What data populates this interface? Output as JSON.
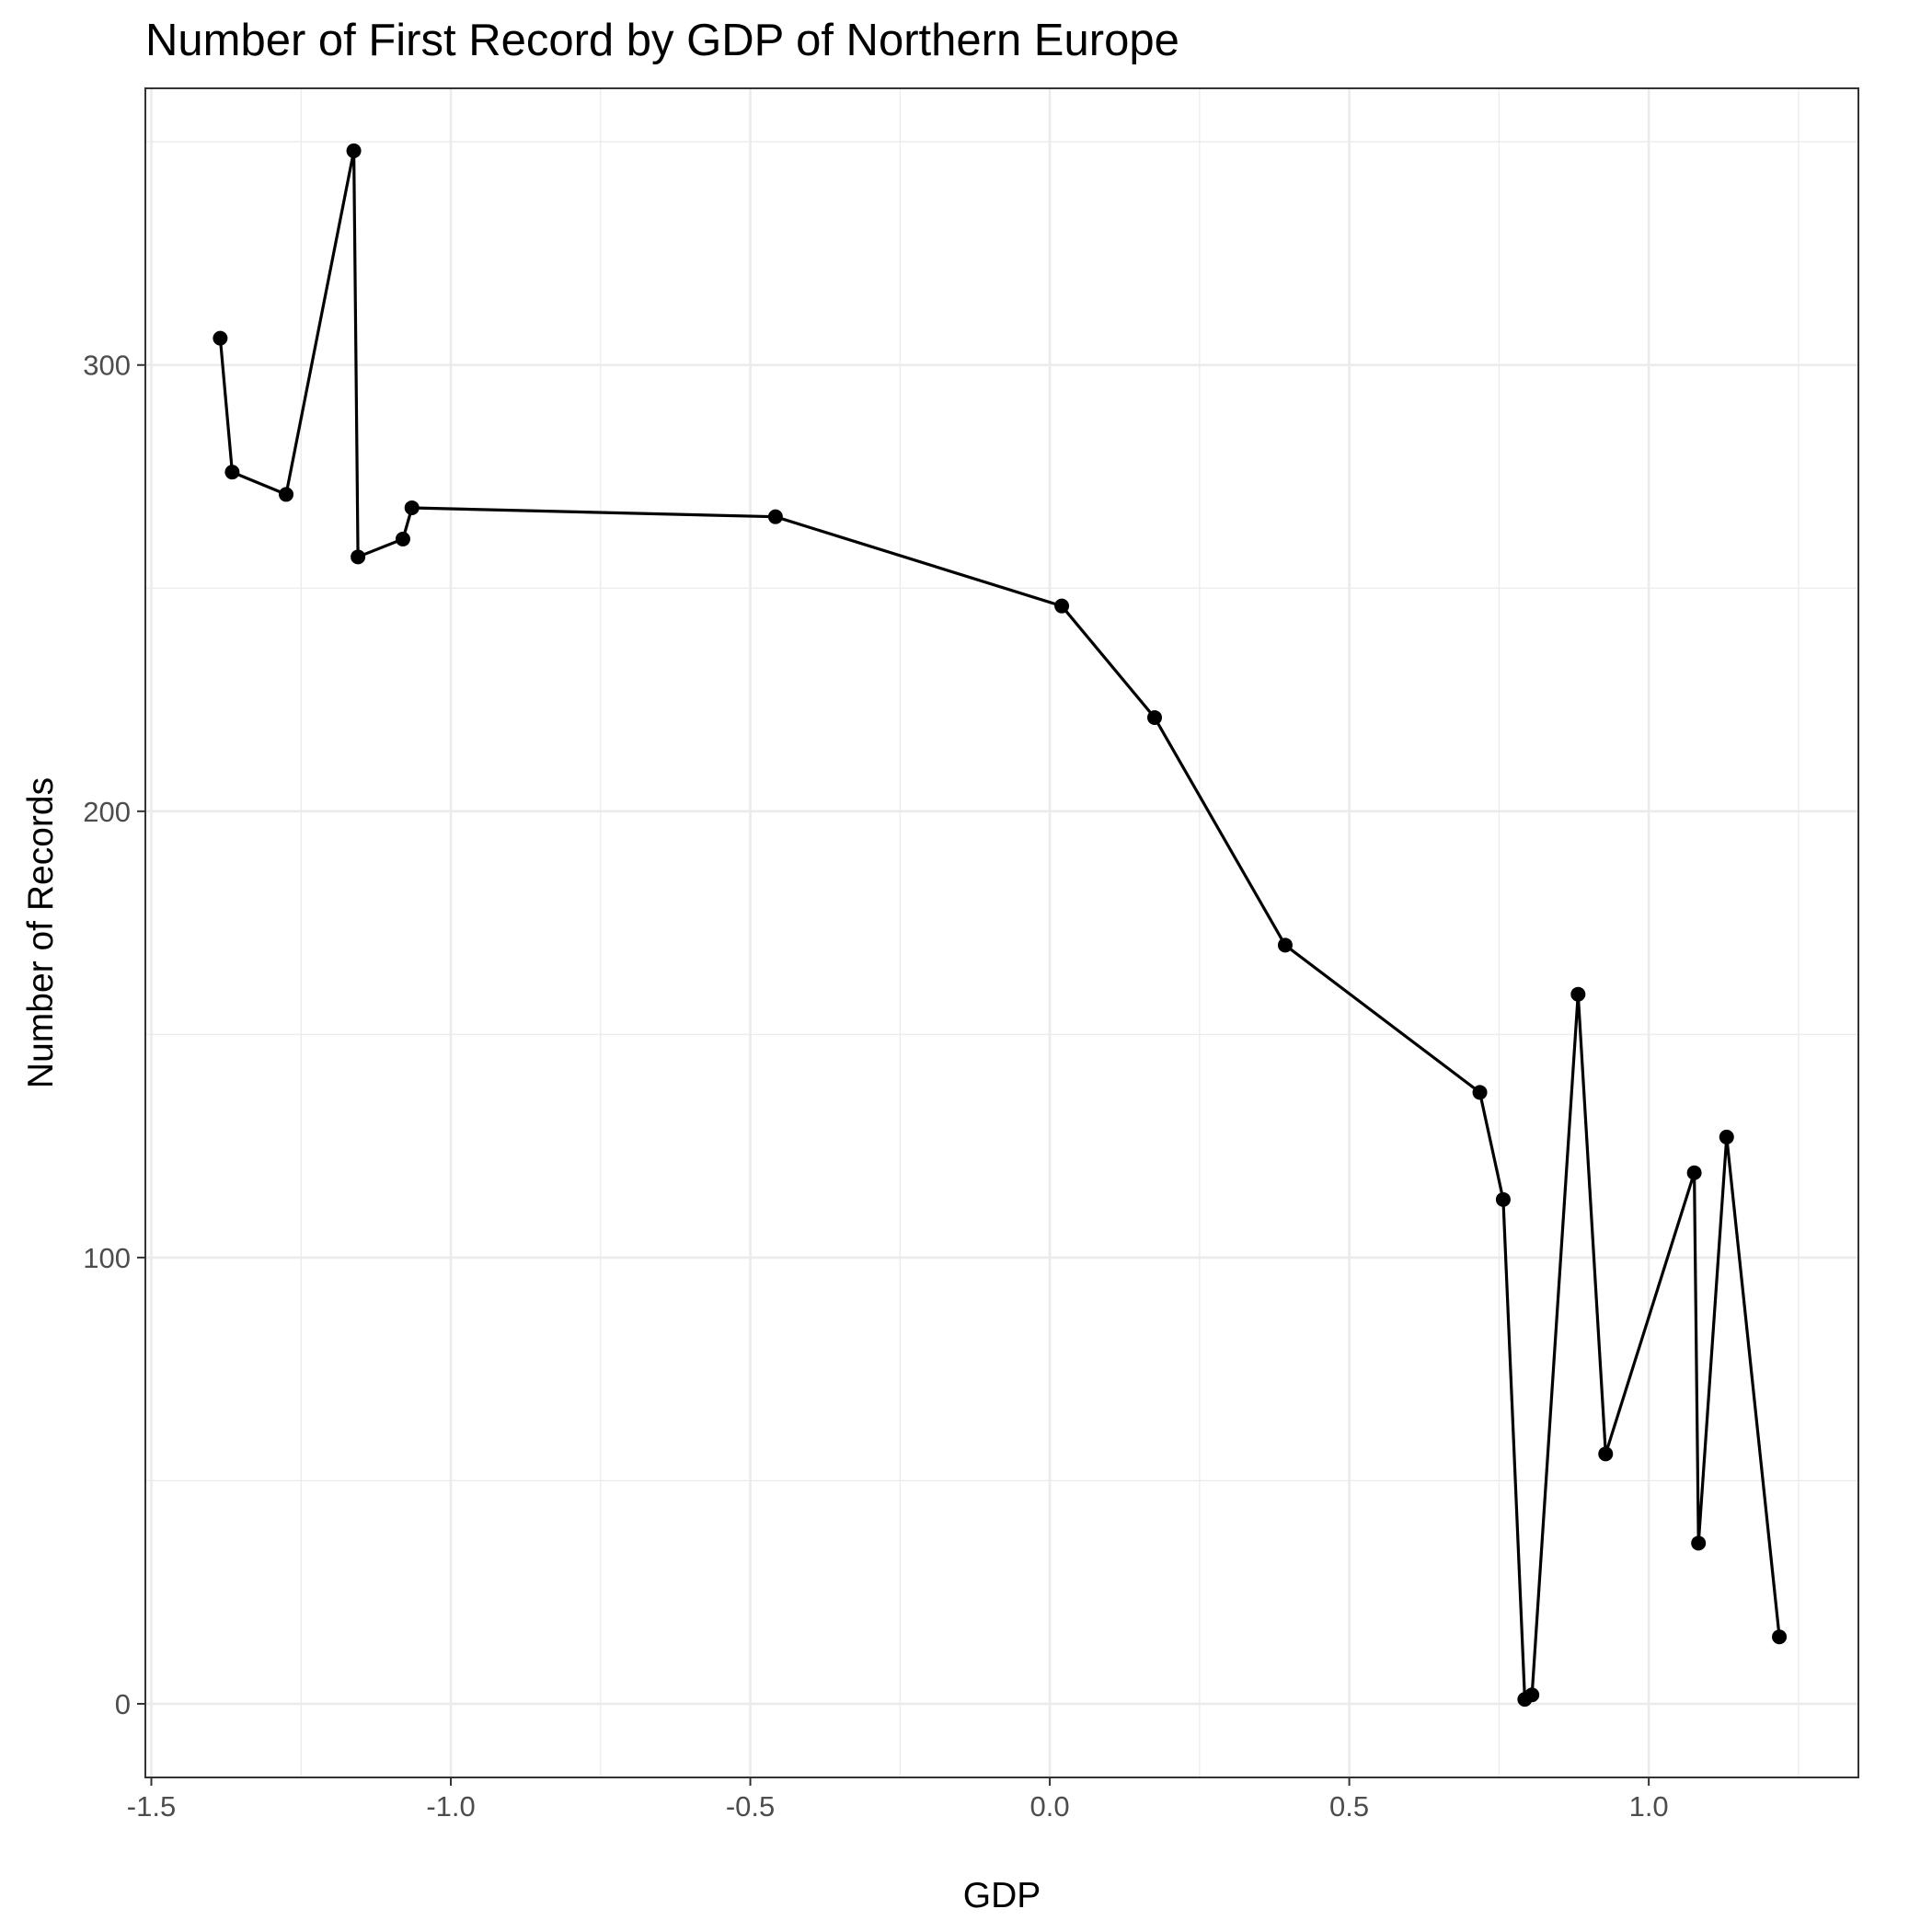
{
  "chart_data": {
    "type": "line",
    "title": "Number of First Record by GDP of Northern Europe",
    "xlabel": "GDP",
    "ylabel": "Number of Records",
    "xlim": [
      -1.51,
      1.35
    ],
    "ylim": [
      -16.5,
      362
    ],
    "x_ticks": [
      -1.5,
      -1.0,
      -0.5,
      0.0,
      0.5,
      1.0
    ],
    "x_tick_labels": [
      "-1.5",
      "-1.0",
      "-0.5",
      "0.0",
      "0.5",
      "1.0"
    ],
    "y_ticks": [
      0,
      100,
      200,
      300
    ],
    "y_tick_labels": [
      "0",
      "100",
      "200",
      "300"
    ],
    "grid": true,
    "legend": "none",
    "series": [
      {
        "points": [
          {
            "x": -1.385,
            "y": 306
          },
          {
            "x": -1.365,
            "y": 276
          },
          {
            "x": -1.275,
            "y": 271
          },
          {
            "x": -1.162,
            "y": 348
          },
          {
            "x": -1.155,
            "y": 257
          },
          {
            "x": -1.08,
            "y": 261
          },
          {
            "x": -1.065,
            "y": 268
          },
          {
            "x": -0.458,
            "y": 266
          },
          {
            "x": 0.02,
            "y": 246
          },
          {
            "x": 0.175,
            "y": 221
          },
          {
            "x": 0.393,
            "y": 170
          },
          {
            "x": 0.718,
            "y": 137
          },
          {
            "x": 0.757,
            "y": 113
          },
          {
            "x": 0.793,
            "y": 1
          },
          {
            "x": 0.805,
            "y": 2
          },
          {
            "x": 0.882,
            "y": 159
          },
          {
            "x": 0.928,
            "y": 56
          },
          {
            "x": 1.076,
            "y": 119
          },
          {
            "x": 1.083,
            "y": 36
          },
          {
            "x": 1.13,
            "y": 127
          },
          {
            "x": 1.218,
            "y": 15
          }
        ]
      }
    ]
  }
}
